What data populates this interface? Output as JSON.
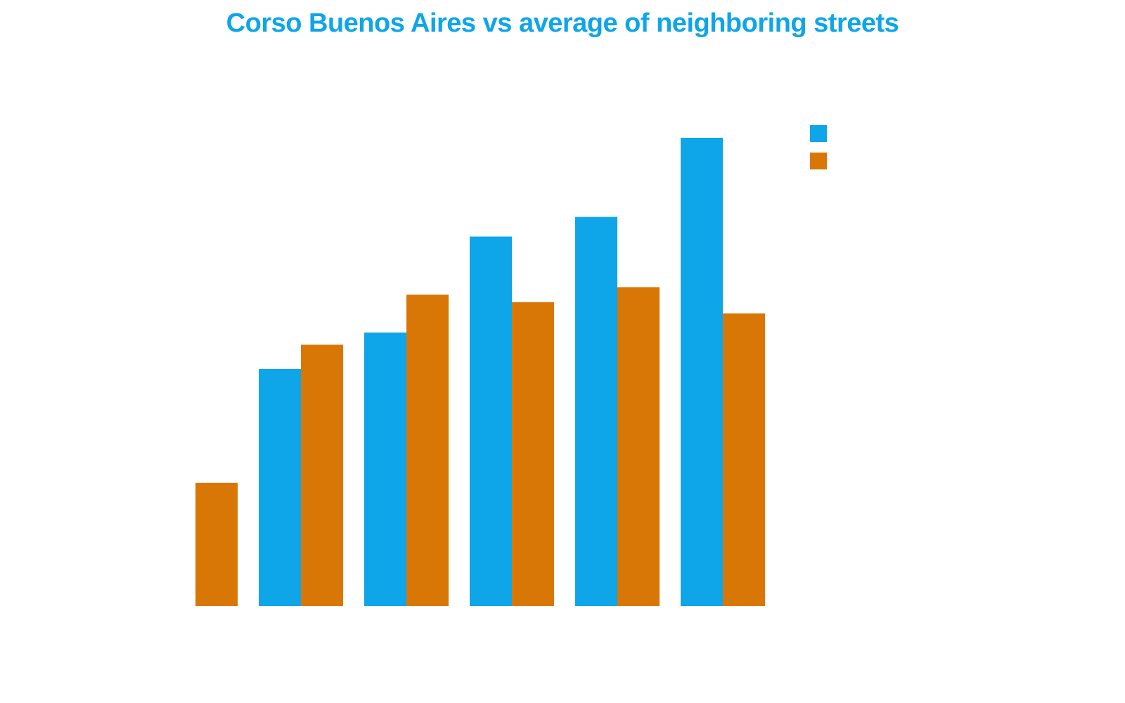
{
  "colors": {
    "title": "#0ea5e9",
    "background": "#ffffff"
  },
  "chart_data": {
    "type": "bar",
    "title": "Corso Buenos Aires vs average of neighboring streets",
    "xlabel": "",
    "ylabel": "",
    "grid": false,
    "ylim": [
      0,
      1
    ],
    "categories": [
      "",
      "",
      "",
      "",
      "",
      ""
    ],
    "legend": {
      "placement": "top-right"
    },
    "series": [
      {
        "color": "#0ea5e9",
        "values": [
          0,
          0.506,
          0.584,
          0.789,
          0.831,
          1.0
        ]
      },
      {
        "color": "#d97706",
        "values": [
          0.263,
          0.558,
          0.665,
          0.649,
          0.681,
          0.625
        ]
      }
    ]
  }
}
